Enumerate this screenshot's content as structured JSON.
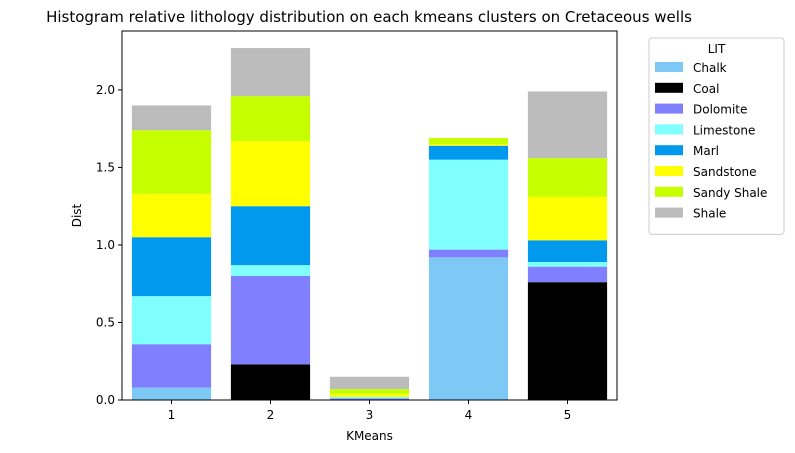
{
  "chart_data": {
    "type": "bar",
    "stacked": true,
    "title": "Histogram relative lithology distribution on each kmeans clusters on Cretaceous wells",
    "xlabel": "KMeans",
    "ylabel": "Dist",
    "categories": [
      "1",
      "2",
      "3",
      "4",
      "5"
    ],
    "ylim": [
      0,
      2.38
    ],
    "yticks": [
      "0.0",
      "0.5",
      "1.0",
      "1.5",
      "2.0"
    ],
    "ytick_values": [
      0,
      0.5,
      1.0,
      1.5,
      2.0
    ],
    "grid": false,
    "legend": {
      "title": "LIT",
      "position": "outside-top-right"
    },
    "series": [
      {
        "name": "Chalk",
        "color": "#7ec8f5",
        "values": [
          0.08,
          0.0,
          0.0,
          0.92,
          0.0
        ]
      },
      {
        "name": "Coal",
        "color": "#000000",
        "values": [
          0.0,
          0.23,
          0.0,
          0.0,
          0.76
        ]
      },
      {
        "name": "Dolomite",
        "color": "#8080ff",
        "values": [
          0.28,
          0.57,
          0.01,
          0.05,
          0.1
        ]
      },
      {
        "name": "Limestone",
        "color": "#80ffff",
        "values": [
          0.31,
          0.07,
          0.01,
          0.58,
          0.03
        ]
      },
      {
        "name": "Marl",
        "color": "#0099ee",
        "values": [
          0.38,
          0.38,
          0.0,
          0.09,
          0.14
        ]
      },
      {
        "name": "Sandstone",
        "color": "#ffff00",
        "values": [
          0.28,
          0.42,
          0.02,
          0.01,
          0.28
        ]
      },
      {
        "name": "Sandy Shale",
        "color": "#c5ff00",
        "values": [
          0.41,
          0.29,
          0.03,
          0.04,
          0.25
        ]
      },
      {
        "name": "Shale",
        "color": "#bcbcbc",
        "values": [
          0.16,
          0.31,
          0.08,
          0.0,
          0.43
        ]
      }
    ]
  }
}
